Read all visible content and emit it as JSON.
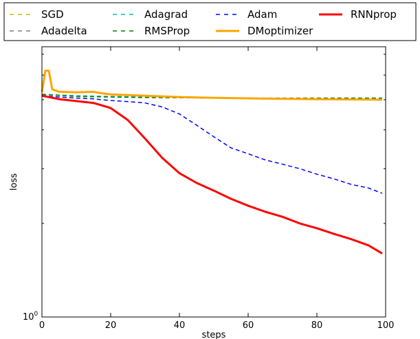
{
  "chart_data": {
    "type": "line",
    "title": "",
    "xlabel": "steps",
    "ylabel": "loss",
    "xlim": [
      0,
      100
    ],
    "yscale": "log",
    "xticks": [
      "0",
      "20",
      "40",
      "60",
      "80",
      "100"
    ],
    "yticks": [
      {
        "base": "10",
        "exp": "0"
      }
    ],
    "grid": false,
    "legend_placement": "top, above plot",
    "series": [
      {
        "name": "SGD",
        "color": "#bfbf00",
        "style": "dashed",
        "x": [
          0,
          10,
          20,
          30,
          40,
          50,
          60,
          70,
          80,
          90,
          99
        ],
        "y": [
          5.2,
          5.15,
          5.12,
          5.1,
          5.08,
          5.06,
          5.05,
          5.03,
          5.02,
          5.01,
          5.0
        ]
      },
      {
        "name": "Adadelta",
        "color": "#7f7f7f",
        "style": "dashed",
        "x": [
          0,
          10,
          20,
          30,
          40,
          50,
          60,
          70,
          80,
          90,
          99
        ],
        "y": [
          5.2,
          5.15,
          5.12,
          5.1,
          5.08,
          5.06,
          5.05,
          5.03,
          5.02,
          5.01,
          5.0
        ]
      },
      {
        "name": "Adagrad",
        "color": "#00bfbf",
        "style": "dashed",
        "x": [
          0,
          10,
          20,
          30,
          40,
          50,
          60,
          70,
          80,
          90,
          99
        ],
        "y": [
          5.2,
          5.15,
          5.12,
          5.1,
          5.08,
          5.06,
          5.05,
          5.03,
          5.02,
          5.01,
          5.0
        ]
      },
      {
        "name": "RMSProp",
        "color": "#007f00",
        "style": "dashed",
        "x": [
          0,
          10,
          20,
          30,
          40,
          50,
          60,
          70,
          80,
          90,
          99
        ],
        "y": [
          5.2,
          5.12,
          5.1,
          5.08,
          5.07,
          5.06,
          5.06,
          5.06,
          5.06,
          5.06,
          5.06
        ]
      },
      {
        "name": "Adam",
        "color": "#0000ff",
        "style": "dashed",
        "x": [
          0,
          5,
          10,
          15,
          20,
          25,
          30,
          35,
          40,
          45,
          50,
          55,
          60,
          65,
          70,
          75,
          80,
          85,
          90,
          95,
          99
        ],
        "y": [
          5.15,
          5.1,
          5.06,
          5.03,
          4.97,
          4.93,
          4.88,
          4.74,
          4.5,
          4.14,
          3.8,
          3.5,
          3.35,
          3.2,
          3.1,
          3.0,
          2.88,
          2.78,
          2.67,
          2.6,
          2.5
        ]
      },
      {
        "name": "DMoptimizer",
        "color": "#ffa500",
        "style": "solid",
        "x": [
          0,
          1,
          2,
          3,
          5,
          10,
          15,
          17,
          20,
          30,
          40,
          50,
          60,
          70,
          80,
          90,
          99
        ],
        "y": [
          5.3,
          6.2,
          6.2,
          5.4,
          5.3,
          5.28,
          5.3,
          5.25,
          5.2,
          5.15,
          5.1,
          5.07,
          5.05,
          5.03,
          5.02,
          5.01,
          5.0
        ]
      },
      {
        "name": "RNNprop",
        "color": "#ff0000",
        "style": "solid",
        "x": [
          0,
          5,
          10,
          15,
          20,
          25,
          30,
          35,
          40,
          45,
          50,
          55,
          60,
          65,
          70,
          75,
          80,
          85,
          90,
          95,
          99
        ],
        "y": [
          5.15,
          5.02,
          4.95,
          4.88,
          4.7,
          4.3,
          3.75,
          3.25,
          2.9,
          2.7,
          2.55,
          2.4,
          2.28,
          2.18,
          2.1,
          2.0,
          1.93,
          1.85,
          1.78,
          1.7,
          1.6
        ]
      }
    ]
  }
}
